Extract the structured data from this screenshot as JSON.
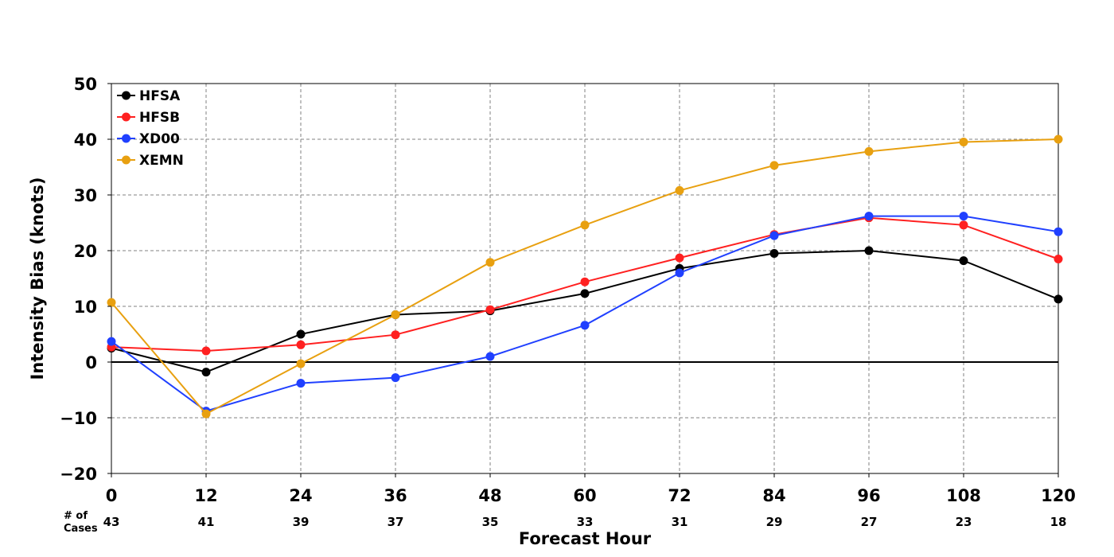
{
  "chart_data": {
    "type": "line",
    "title": "",
    "xlabel": "Forecast Hour",
    "ylabel": "Intensity Bias (knots)",
    "x": [
      0,
      12,
      24,
      36,
      48,
      60,
      72,
      84,
      96,
      108,
      120
    ],
    "x_tick_labels": [
      "0",
      "12",
      "24",
      "36",
      "48",
      "60",
      "72",
      "84",
      "96",
      "108",
      "120"
    ],
    "xlim": [
      0,
      120
    ],
    "ylim": [
      -20,
      50
    ],
    "y_ticks": [
      -20,
      -10,
      0,
      10,
      20,
      30,
      40,
      50
    ],
    "y_tick_labels": [
      "−20",
      "−10",
      "0",
      "10",
      "20",
      "30",
      "40",
      "50"
    ],
    "grid": true,
    "legend_position": "top-left",
    "cases_label_line1": "# of",
    "cases_label_line2": "Cases",
    "cases": [
      "43",
      "41",
      "39",
      "37",
      "35",
      "33",
      "31",
      "29",
      "27",
      "23",
      "18"
    ],
    "series": [
      {
        "name": "HFSA",
        "color": "#000000",
        "values": [
          2.5,
          -1.8,
          5.0,
          8.5,
          9.2,
          12.3,
          16.8,
          19.5,
          20.0,
          18.2,
          11.3
        ]
      },
      {
        "name": "HFSB",
        "color": "#ff2020",
        "values": [
          2.7,
          2.0,
          3.1,
          4.9,
          9.4,
          14.4,
          18.7,
          22.9,
          25.9,
          24.6,
          18.5
        ]
      },
      {
        "name": "XD00",
        "color": "#2040ff",
        "values": [
          3.7,
          -8.8,
          -3.8,
          -2.8,
          1.0,
          6.6,
          16.0,
          22.7,
          26.2,
          26.2,
          23.4
        ]
      },
      {
        "name": "XEMN",
        "color": "#e8a010",
        "values": [
          10.7,
          -9.3,
          -0.3,
          8.5,
          17.9,
          24.6,
          30.8,
          35.3,
          37.8,
          39.5,
          40.0
        ]
      }
    ]
  }
}
